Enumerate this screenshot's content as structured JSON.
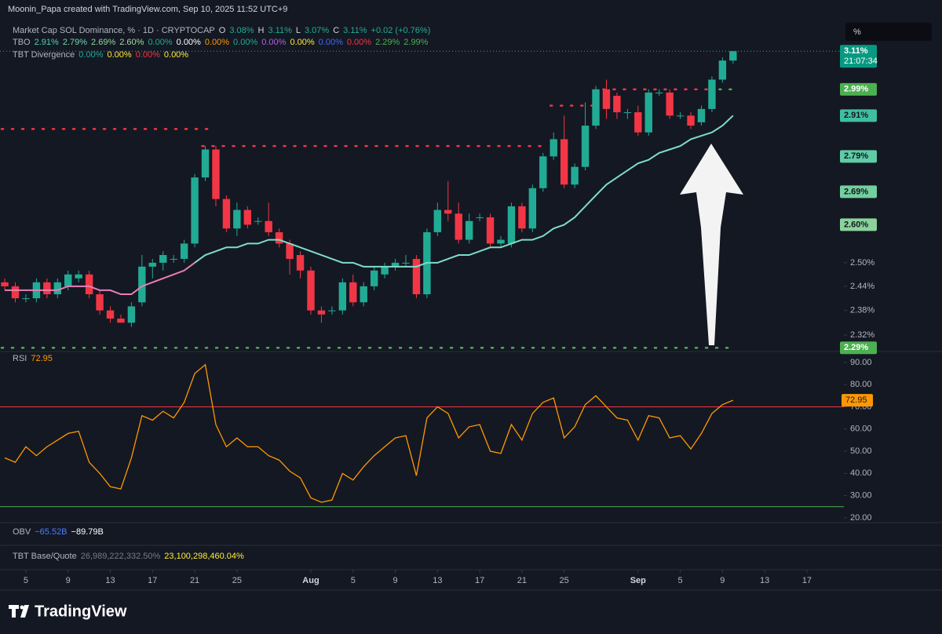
{
  "header": {
    "credit": "Moonin_Papa created with TradingView.com, Sep 10, 2025 11:52 UTC+9",
    "scale_label": "%"
  },
  "footer": {
    "brand": "TradingView"
  },
  "legends": [
    {
      "name": "Market Cap SOL Dominance, % · 1D · CRYPTOCAP",
      "items": [
        {
          "text": "O",
          "color": "#d1d4dc"
        },
        {
          "text": "3.08%",
          "color": "#22ab94"
        },
        {
          "text": "H",
          "color": "#d1d4dc"
        },
        {
          "text": "3.11%",
          "color": "#22ab94"
        },
        {
          "text": "L",
          "color": "#d1d4dc"
        },
        {
          "text": "3.07%",
          "color": "#22ab94"
        },
        {
          "text": "C",
          "color": "#d1d4dc"
        },
        {
          "text": "3.11%",
          "color": "#22ab94"
        },
        {
          "text": "+0.02 (+0.76%)",
          "color": "#22ab94"
        }
      ]
    },
    {
      "name": "TBO",
      "items": [
        {
          "text": "2.91%",
          "color": "#4fd1b0"
        },
        {
          "text": "2.79%",
          "color": "#6fd6a8"
        },
        {
          "text": "2.69%",
          "color": "#8ed99f"
        },
        {
          "text": "2.60%",
          "color": "#a5dba0"
        },
        {
          "text": "0.00%",
          "color": "#22ab94"
        },
        {
          "text": "0.00%",
          "color": "#ffffff"
        },
        {
          "text": "0.00%",
          "color": "#ff9800"
        },
        {
          "text": "0.00%",
          "color": "#22ab94"
        },
        {
          "text": "0.00%",
          "color": "#b15ee0"
        },
        {
          "text": "0.00%",
          "color": "#ffeb3b"
        },
        {
          "text": "0.00%",
          "color": "#3d6cf2"
        },
        {
          "text": "0.00%",
          "color": "#f23645"
        },
        {
          "text": "2.29%",
          "color": "#4caf50"
        },
        {
          "text": "2.99%",
          "color": "#4caf50"
        }
      ]
    },
    {
      "name": "TBT Divergence",
      "items": [
        {
          "text": "0.00%",
          "color": "#22ab94"
        },
        {
          "text": "0.00%",
          "color": "#ffeb3b"
        },
        {
          "text": "0.00%",
          "color": "#f23645"
        },
        {
          "text": "0.00%",
          "color": "#ffeb3b"
        }
      ]
    },
    {
      "name": "RSI",
      "items": [
        {
          "text": "72.95",
          "color": "#ff9800"
        }
      ]
    },
    {
      "name": "OBV",
      "items": [
        {
          "text": "−65.52B",
          "color": "#4a7dff"
        },
        {
          "text": "−89.79B",
          "color": "#ffffff"
        }
      ]
    },
    {
      "name": "TBT Base/Quote",
      "items": [
        {
          "text": "26,989,222,332.50%",
          "color": "#787b86"
        },
        {
          "text": "23,100,298,460.04%",
          "color": "#ffeb3b"
        }
      ]
    }
  ],
  "chart_data": [
    {
      "type": "candlestick",
      "log_scale": true,
      "grid": false,
      "up_color": "#22ab94",
      "down_color": "#f23645",
      "xlim": [
        -0.45,
        79.5
      ],
      "xticks": [
        {
          "value": 2,
          "label": "5"
        },
        {
          "value": 6,
          "label": "9"
        },
        {
          "value": 10,
          "label": "13"
        },
        {
          "value": 14,
          "label": "17"
        },
        {
          "value": 18,
          "label": "21"
        },
        {
          "value": 22,
          "label": "25"
        },
        {
          "value": 29,
          "label": "Aug"
        },
        {
          "value": 33,
          "label": "5"
        },
        {
          "value": 37,
          "label": "9"
        },
        {
          "value": 41,
          "label": "13"
        },
        {
          "value": 45,
          "label": "17"
        },
        {
          "value": 49,
          "label": "21"
        },
        {
          "value": 53,
          "label": "25"
        },
        {
          "value": 60,
          "label": "Sep"
        },
        {
          "value": 64,
          "label": "5"
        },
        {
          "value": 68,
          "label": "9"
        },
        {
          "value": 72,
          "label": "13"
        },
        {
          "value": 76,
          "label": "17"
        }
      ],
      "ylim": [
        2.283,
        3.226
      ],
      "yticks": [
        {
          "value": 2.32,
          "label": "2.32%"
        },
        {
          "value": 2.38,
          "label": "2.38%"
        },
        {
          "value": 2.44,
          "label": "2.44%"
        },
        {
          "value": 2.5,
          "label": "2.50%"
        }
      ],
      "open": [
        2.45,
        2.44,
        2.41,
        2.41,
        2.45,
        2.42,
        2.44,
        2.46,
        2.47,
        2.42,
        2.38,
        2.36,
        2.35,
        2.4,
        2.49,
        2.5,
        2.51,
        2.51,
        2.55,
        2.73,
        2.81,
        2.67,
        2.59,
        2.64,
        2.61,
        2.61,
        2.58,
        2.55,
        2.52,
        2.48,
        2.38,
        2.38,
        2.38,
        2.45,
        2.4,
        2.44,
        2.47,
        2.49,
        2.5,
        2.51,
        2.42,
        2.58,
        2.64,
        2.63,
        2.56,
        2.62,
        2.62,
        2.55,
        2.55,
        2.65,
        2.59,
        2.7,
        2.79,
        2.84,
        2.71,
        2.76,
        2.88,
        2.99,
        2.97,
        2.92,
        2.92,
        2.86,
        2.98,
        2.98,
        2.91,
        2.91,
        2.89,
        2.93,
        3.02,
        3.08
      ],
      "high": [
        2.46,
        2.45,
        2.42,
        2.46,
        2.46,
        2.46,
        2.48,
        2.48,
        2.48,
        2.43,
        2.39,
        2.37,
        2.4,
        2.52,
        2.51,
        2.53,
        2.52,
        2.56,
        2.74,
        2.82,
        2.82,
        2.68,
        2.66,
        2.65,
        2.62,
        2.66,
        2.59,
        2.56,
        2.53,
        2.49,
        2.39,
        2.39,
        2.46,
        2.47,
        2.45,
        2.49,
        2.5,
        2.51,
        2.52,
        2.52,
        2.59,
        2.66,
        2.72,
        2.66,
        2.63,
        2.63,
        2.63,
        2.57,
        2.66,
        2.66,
        2.71,
        2.8,
        2.86,
        2.91,
        2.77,
        2.95,
        3.0,
        3.02,
        2.98,
        2.93,
        2.94,
        2.99,
        2.99,
        2.99,
        2.92,
        2.92,
        2.94,
        3.03,
        3.09,
        3.11
      ],
      "low": [
        2.43,
        2.4,
        2.4,
        2.4,
        2.41,
        2.41,
        2.43,
        2.45,
        2.41,
        2.37,
        2.35,
        2.35,
        2.34,
        2.39,
        2.46,
        2.48,
        2.5,
        2.5,
        2.54,
        2.72,
        2.65,
        2.58,
        2.57,
        2.59,
        2.6,
        2.57,
        2.54,
        2.47,
        2.46,
        2.37,
        2.35,
        2.37,
        2.37,
        2.39,
        2.39,
        2.43,
        2.46,
        2.48,
        2.49,
        2.41,
        2.41,
        2.57,
        2.61,
        2.55,
        2.55,
        2.61,
        2.54,
        2.54,
        2.54,
        2.58,
        2.58,
        2.69,
        2.78,
        2.7,
        2.7,
        2.75,
        2.87,
        2.9,
        2.9,
        2.9,
        2.85,
        2.85,
        2.97,
        2.9,
        2.9,
        2.87,
        2.88,
        2.92,
        3.01,
        3.07
      ],
      "close": [
        2.44,
        2.41,
        2.41,
        2.45,
        2.42,
        2.45,
        2.47,
        2.47,
        2.42,
        2.38,
        2.36,
        2.35,
        2.39,
        2.49,
        2.5,
        2.52,
        2.51,
        2.55,
        2.73,
        2.81,
        2.67,
        2.59,
        2.64,
        2.6,
        2.61,
        2.58,
        2.55,
        2.51,
        2.48,
        2.38,
        2.37,
        2.38,
        2.45,
        2.4,
        2.44,
        2.48,
        2.49,
        2.5,
        2.5,
        2.42,
        2.58,
        2.64,
        2.63,
        2.56,
        2.61,
        2.62,
        2.55,
        2.56,
        2.65,
        2.59,
        2.7,
        2.79,
        2.84,
        2.71,
        2.76,
        2.88,
        2.99,
        2.93,
        2.92,
        2.92,
        2.86,
        2.98,
        2.98,
        2.91,
        2.91,
        2.88,
        2.93,
        3.02,
        3.08,
        3.11
      ],
      "series": [
        {
          "color": "#e87fb8",
          "values": [
            2.43,
            2.43,
            2.43,
            2.43,
            2.43,
            2.43,
            2.44,
            2.44,
            2.44,
            2.43,
            2.43,
            2.42,
            2.42,
            2.44,
            2.45,
            2.46,
            2.47,
            2.48,
            2.5,
            null,
            null,
            null,
            null,
            null,
            null,
            null,
            null,
            null,
            null,
            null,
            null,
            null,
            null,
            null,
            null,
            null,
            null,
            null,
            null,
            null,
            null,
            null,
            null,
            null,
            null,
            null,
            null,
            null,
            null,
            null,
            null,
            null,
            null,
            null,
            null,
            null,
            null,
            null,
            null,
            null,
            null,
            null,
            null,
            null,
            null,
            null,
            null,
            null,
            null,
            null
          ]
        },
        {
          "color": "#7fdcc8",
          "values": [
            null,
            null,
            null,
            null,
            null,
            null,
            null,
            null,
            null,
            null,
            null,
            null,
            null,
            null,
            null,
            null,
            null,
            null,
            2.5,
            2.52,
            2.53,
            2.54,
            2.54,
            2.55,
            2.55,
            2.56,
            2.56,
            2.55,
            2.54,
            2.53,
            2.52,
            2.51,
            2.5,
            2.5,
            2.49,
            2.49,
            2.49,
            2.49,
            2.49,
            2.49,
            2.5,
            2.5,
            2.51,
            2.52,
            2.52,
            2.53,
            2.54,
            2.54,
            2.55,
            2.56,
            2.56,
            2.57,
            2.59,
            2.6,
            2.62,
            2.65,
            2.68,
            2.71,
            2.73,
            2.75,
            2.77,
            2.78,
            2.8,
            2.81,
            2.82,
            2.84,
            2.85,
            2.86,
            2.88,
            2.91
          ]
        }
      ],
      "levels": [
        {
          "value": 2.87,
          "color": "#f23645",
          "start": 0,
          "end": 19
        },
        {
          "value": 2.82,
          "color": "#f23645",
          "start": 19,
          "end": 51
        },
        {
          "value": 2.94,
          "color": "#f23645",
          "start": 52,
          "end": 56
        },
        {
          "value": 2.99,
          "color": "#f23645",
          "start": 57,
          "end": 67
        },
        {
          "value": 2.99,
          "color": "#4caf50",
          "start": 68,
          "end": 69
        },
        {
          "value": 2.29,
          "color": "#4caf50",
          "start": 0,
          "end": 69
        }
      ],
      "countdown": "21:07:34",
      "price_labels": [
        {
          "value": 3.11,
          "label": "3.11%",
          "color": "#089981",
          "text_color": "#ffffff"
        },
        {
          "value": 2.99,
          "label": "2.99%",
          "color": "#4caf50",
          "text_color": "#ffffff"
        },
        {
          "value": 2.91,
          "label": "2.91%",
          "color": "#3fbf9f",
          "text_color": "#131722"
        },
        {
          "value": 2.79,
          "label": "2.79%",
          "color": "#5fcca6",
          "text_color": "#131722"
        },
        {
          "value": 2.69,
          "label": "2.69%",
          "color": "#73cf9e",
          "text_color": "#131722"
        },
        {
          "value": 2.6,
          "label": "2.60%",
          "color": "#8bd29c",
          "text_color": "#131722"
        },
        {
          "value": 2.29,
          "label": "2.29%",
          "color": "#4caf50",
          "text_color": "#ffffff"
        }
      ]
    },
    {
      "type": "line",
      "grid": false,
      "color": "#ff9800",
      "ylim": [
        18.2,
        94.2
      ],
      "yticks": [
        {
          "value": 20,
          "label": "20.00"
        },
        {
          "value": 30,
          "label": "30.00"
        },
        {
          "value": 40,
          "label": "40.00"
        },
        {
          "value": 50,
          "label": "50.00"
        },
        {
          "value": 60,
          "label": "60.00"
        },
        {
          "value": 70,
          "label": "70.00"
        },
        {
          "value": 80,
          "label": "80.00"
        },
        {
          "value": 90,
          "label": "90.00"
        }
      ],
      "values": [
        47,
        45,
        52,
        48,
        52,
        55,
        58,
        59,
        45,
        40,
        34,
        33,
        47,
        66,
        64,
        68,
        65,
        72,
        85,
        89,
        62,
        52,
        56,
        52,
        52,
        48,
        46,
        41,
        38,
        29,
        27,
        28,
        40,
        37,
        43,
        48,
        52,
        56,
        57,
        39,
        65,
        70,
        67,
        56,
        61,
        62,
        50,
        49,
        62,
        55,
        67,
        72,
        74,
        56,
        61,
        71,
        75,
        70,
        65,
        64,
        55,
        66,
        65,
        56,
        57,
        51,
        58,
        67,
        71,
        72.95
      ],
      "levels": [
        {
          "value": 70,
          "color": "#f23645"
        },
        {
          "value": 25,
          "color": "#4caf50"
        }
      ]
    }
  ]
}
